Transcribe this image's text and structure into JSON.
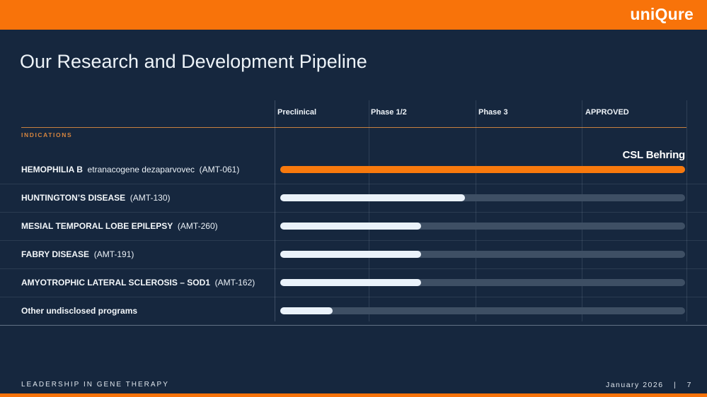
{
  "brand": {
    "logo_text": "uniQure",
    "accent_orange": "#F8730A",
    "background_navy": "#16273E",
    "track_slate": "#3E4F64",
    "bar_white": "#EAF2FA"
  },
  "header": {
    "title": "Our Research and Development Pipeline"
  },
  "pipeline": {
    "indications_label": "INDICATIONS",
    "columns": [
      {
        "label": "Preclinical"
      },
      {
        "label": "Phase 1/2"
      },
      {
        "label": "Phase 3"
      },
      {
        "label": "APPROVED"
      }
    ],
    "rows": [
      {
        "name": "HEMOPHILIA B",
        "detail": "etranacogene dezaparvovec",
        "code": "(AMT-061)",
        "progress_pct": 100,
        "bar_color": "orange",
        "partner": "CSL Behring",
        "stage_reached": "APPROVED"
      },
      {
        "name": "HUNTINGTON’S DISEASE",
        "detail": "",
        "code": "(AMT-130)",
        "progress_pct": 45.6,
        "bar_color": "white",
        "partner": "",
        "stage_reached": "Phase 1/2 (advanced)"
      },
      {
        "name": "MESIAL TEMPORAL LOBE EPILEPSY",
        "detail": "",
        "code": "(AMT-260)",
        "progress_pct": 34.8,
        "bar_color": "white",
        "partner": "",
        "stage_reached": "Phase 1/2"
      },
      {
        "name": "FABRY DISEASE",
        "detail": "",
        "code": "(AMT-191)",
        "progress_pct": 34.8,
        "bar_color": "white",
        "partner": "",
        "stage_reached": "Phase 1/2"
      },
      {
        "name": "AMYOTROPHIC LATERAL SCLEROSIS – SOD1",
        "detail": "",
        "code": "(AMT-162)",
        "progress_pct": 34.8,
        "bar_color": "white",
        "partner": "",
        "stage_reached": "Phase 1/2"
      },
      {
        "name": "Other undisclosed programs",
        "detail": "",
        "code": "",
        "progress_pct": 12.9,
        "bar_color": "white",
        "partner": "",
        "stage_reached": "Preclinical"
      }
    ]
  },
  "footer": {
    "left_text": "LEADERSHIP IN GENE THERAPY",
    "date": "January 2026",
    "separator": "|",
    "page_number": "7"
  },
  "chart_data": {
    "type": "bar",
    "title": "Our Research and Development Pipeline",
    "orientation": "horizontal-progress",
    "stage_columns": [
      "Preclinical",
      "Phase 1/2",
      "Phase 3",
      "APPROVED"
    ],
    "stage_boundaries_pct": [
      21.9,
      48.3,
      74.5,
      100
    ],
    "categories": [
      "HEMOPHILIA B etranacogene dezaparvovec (AMT-061)",
      "HUNTINGTON'S DISEASE (AMT-130)",
      "MESIAL TEMPORAL LOBE EPILEPSY (AMT-260)",
      "FABRY DISEASE (AMT-191)",
      "AMYOTROPHIC LATERAL SCLEROSIS – SOD1 (AMT-162)",
      "Other undisclosed programs"
    ],
    "values_pct_of_track": [
      100,
      45.6,
      34.8,
      34.8,
      34.8,
      12.9
    ],
    "stage_reached": [
      "APPROVED",
      "Phase 1/2 (advanced)",
      "Phase 1/2",
      "Phase 1/2",
      "Phase 1/2",
      "Preclinical"
    ],
    "bar_colors": [
      "#F8790D",
      "#EAF2FA",
      "#EAF2FA",
      "#EAF2FA",
      "#EAF2FA",
      "#EAF2FA"
    ],
    "annotations": [
      {
        "row": 0,
        "text": "CSL Behring",
        "position": "above-bar-right"
      }
    ],
    "grid": "vertical stage separators",
    "legend": "none"
  }
}
